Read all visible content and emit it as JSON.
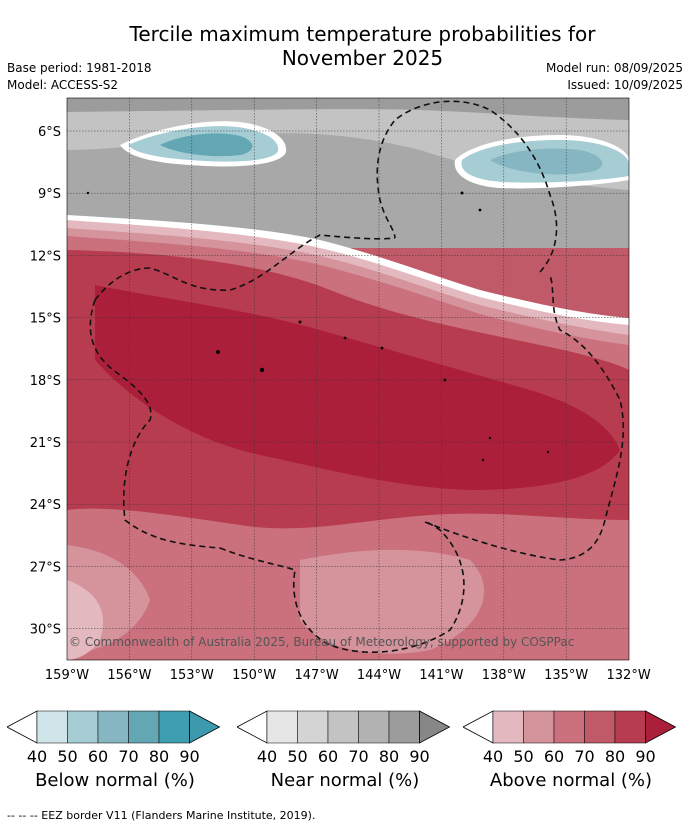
{
  "header": {
    "title_line1": "Tercile maximum temperature probabilities for",
    "title_line2": "November 2025",
    "base_period": "Base period: 1981-2018",
    "model": "Model: ACCESS-S2",
    "model_run": "Model run: 08/09/2025",
    "issued": "Issued: 10/09/2025"
  },
  "map": {
    "lat_labels": [
      "6°S",
      "9°S",
      "12°S",
      "15°S",
      "18°S",
      "21°S",
      "24°S",
      "27°S",
      "30°S"
    ],
    "lon_labels": [
      "159°W",
      "156°W",
      "153°W",
      "150°W",
      "147°W",
      "144°W",
      "141°W",
      "138°W",
      "135°W",
      "132°W"
    ],
    "copyright": "© Commonwealth of Australia 2025, Bureau of Meteorology, supported by COSPPac"
  },
  "legends": [
    {
      "title": "Below normal (%)",
      "ticks": [
        "40",
        "50",
        "60",
        "70",
        "80",
        "90"
      ],
      "colors": [
        "#ffffff",
        "#cfe5ea",
        "#a6cdd4",
        "#85b6c1",
        "#63a6b4",
        "#3f9fb0"
      ]
    },
    {
      "title": "Near normal (%)",
      "ticks": [
        "40",
        "50",
        "60",
        "70",
        "80",
        "90"
      ],
      "colors": [
        "#ffffff",
        "#e6e6e6",
        "#d4d4d4",
        "#c3c3c3",
        "#b2b2b2",
        "#9c9c9c"
      ]
    },
    {
      "title": "Above normal (%)",
      "ticks": [
        "40",
        "50",
        "60",
        "70",
        "80",
        "90"
      ],
      "colors": [
        "#ffffff",
        "#e3b9bf",
        "#d5939b",
        "#ca717d",
        "#c05a68",
        "#b83c50"
      ]
    }
  ],
  "legend_end_colors": [
    "#3d9aac",
    "#878787",
    "#ab1f3b"
  ],
  "footer": "--  --  -- EEZ border V11 (Flanders Marine Institute, 2019)."
}
